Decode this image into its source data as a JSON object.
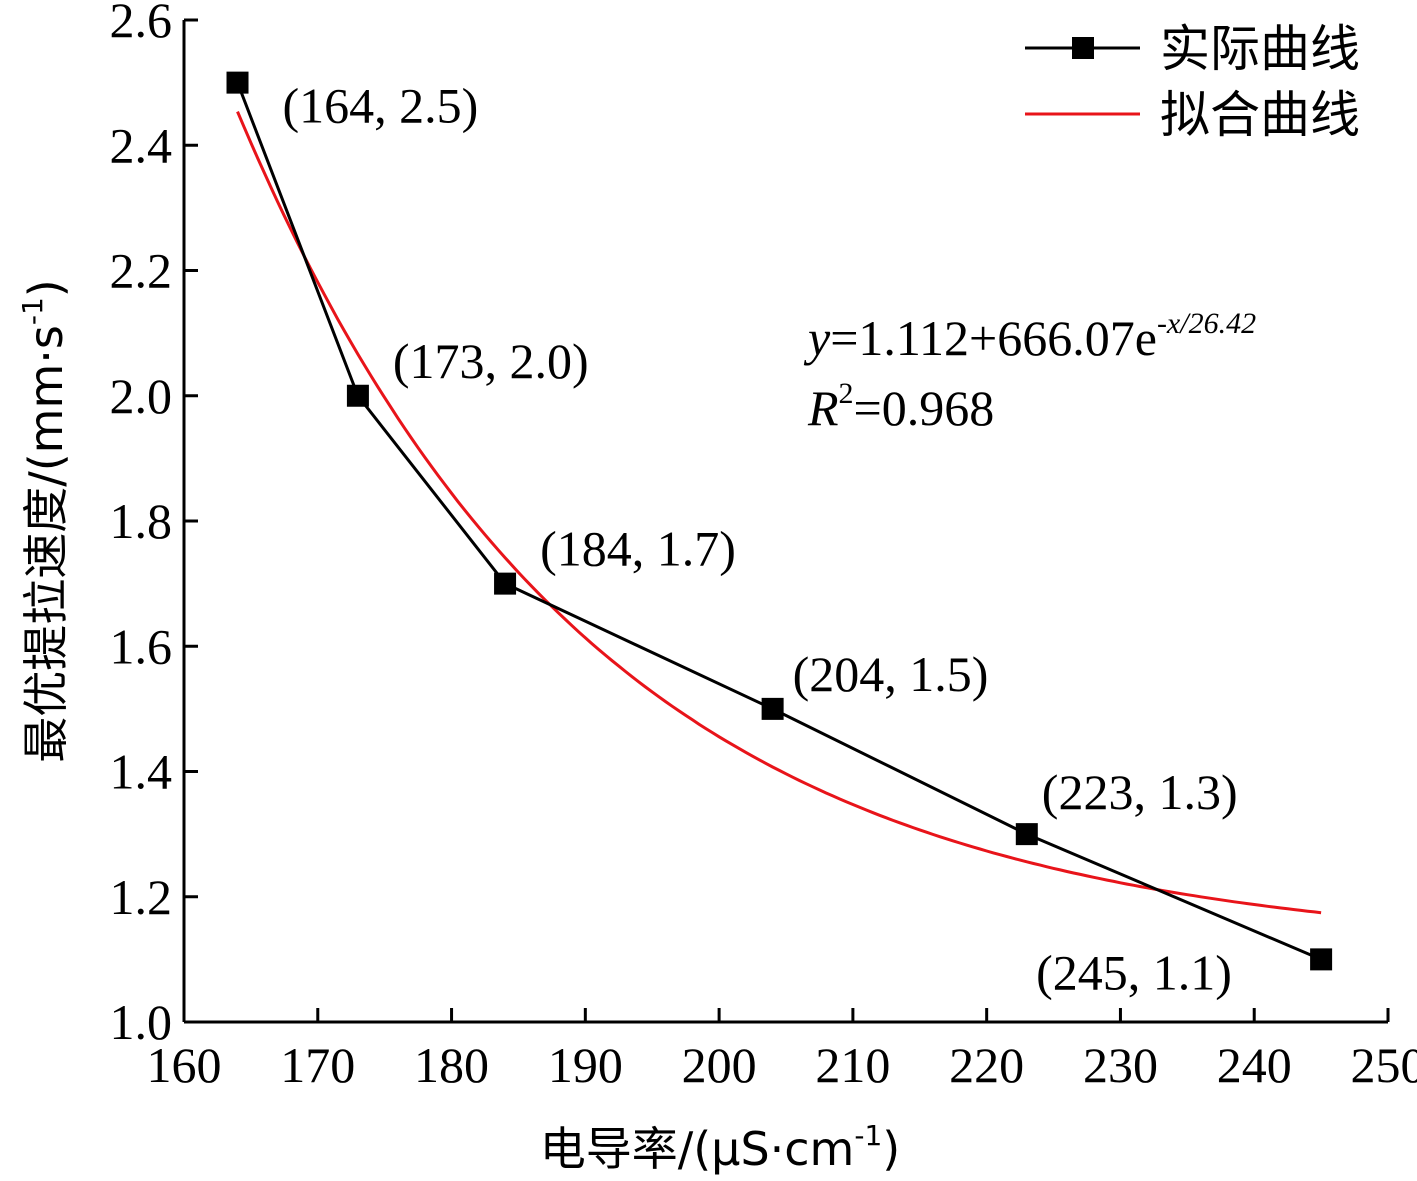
{
  "chart_data": {
    "type": "line",
    "xlabel": "电导率/(μS·cm",
    "xlabel_sup": "-1",
    "xlabel_close": ")",
    "ylabel": "最优提拉速度/(mm·s",
    "ylabel_sup": "-1",
    "ylabel_close": ")",
    "xlim": [
      160,
      250
    ],
    "ylim": [
      1.0,
      2.6
    ],
    "x_ticks": [
      160,
      170,
      180,
      190,
      200,
      210,
      220,
      230,
      240,
      250
    ],
    "y_ticks": [
      "1.0",
      "1.2",
      "1.4",
      "1.6",
      "1.8",
      "2.0",
      "2.2",
      "2.4",
      "2.6"
    ],
    "legend_position": "top-right",
    "series": [
      {
        "name": "实际曲线",
        "color": "#000000",
        "marker": "square",
        "x": [
          164,
          173,
          184,
          204,
          223,
          245
        ],
        "y": [
          2.5,
          2.0,
          1.7,
          1.5,
          1.3,
          1.1
        ]
      },
      {
        "name": "拟合曲线",
        "color": "#e8141a",
        "marker": "none",
        "function": "y=1.112+666.07*exp(-x/26.42)",
        "x_range": [
          164,
          245
        ]
      }
    ],
    "annotations": [
      "(164, 2.5)",
      "(173, 2.0)",
      "(184, 1.7)",
      "(204, 1.5)",
      "(223, 1.3)",
      "(245, 1.1)"
    ],
    "formula": {
      "y": "y",
      "eq": "=1.112+666.07e",
      "exp": "-x/26.42",
      "r": "R",
      "r_sup": "2",
      "r_val": "=0.968"
    }
  }
}
